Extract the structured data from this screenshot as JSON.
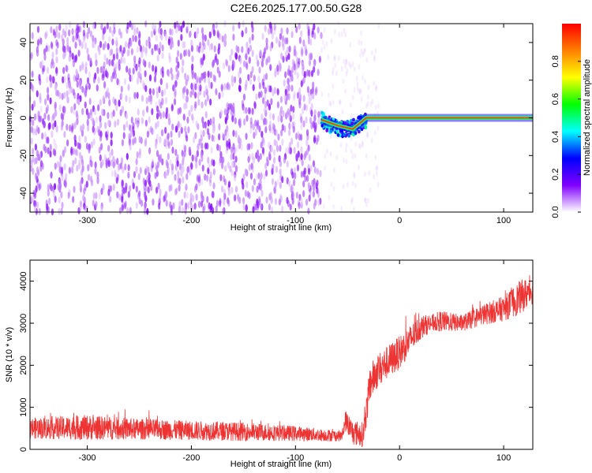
{
  "figure": {
    "title": "C2E6.2025.177.00.50.G28"
  },
  "chart_data": [
    {
      "type": "heatmap",
      "xlabel": "Height of straight line (km)",
      "ylabel": "Frequency (Hz)",
      "xlim": [
        -355,
        128
      ],
      "ylim": [
        -50,
        50
      ],
      "xticks": [
        "-300",
        "-200",
        "-100",
        "0",
        "100"
      ],
      "yticks": [
        "-40",
        "-20",
        "0",
        "20",
        "40"
      ],
      "xtick_values": [
        -300,
        -200,
        -100,
        0,
        100
      ],
      "ytick_values": [
        -40,
        -20,
        0,
        20,
        40
      ],
      "colorbar": {
        "label": "Normalized spectral amplitude",
        "range": [
          0,
          1
        ],
        "ticks": [
          "0.0",
          "0.2",
          "0.4",
          "0.6",
          "0.8"
        ],
        "tick_values": [
          0,
          0.2,
          0.4,
          0.6,
          0.8
        ],
        "colormap": [
          "#ffffff",
          "#8000ff",
          "#0000ff",
          "#00ffff",
          "#00ff00",
          "#ffff00",
          "#ff8000",
          "#ff0000"
        ]
      },
      "regions": [
        {
          "x_range": [
            -355,
            -75
          ],
          "y_range": [
            -50,
            50
          ],
          "amplitude": 0.05,
          "description_level": "noise"
        },
        {
          "x_range": [
            -75,
            -32
          ],
          "y_range": [
            -10,
            5
          ],
          "amplitude": 0.35,
          "description_level": "scattered signal"
        },
        {
          "x_range": [
            -32,
            128
          ],
          "y_range": [
            -1,
            1
          ],
          "amplitude": 0.9,
          "description_level": "tone"
        }
      ],
      "tone_line": {
        "x": [
          -75,
          -60,
          -45,
          -32,
          0,
          128
        ],
        "frequency": [
          -1,
          -4,
          -6,
          0,
          0,
          0
        ]
      }
    },
    {
      "type": "line",
      "xlabel": "Height of straight line (km)",
      "ylabel": "SNR (10 * v/v)",
      "xlim": [
        -355,
        128
      ],
      "ylim": [
        0,
        4500
      ],
      "xticks": [
        "-300",
        "-200",
        "-100",
        "0",
        "100"
      ],
      "yticks": [
        "0",
        "1000",
        "2000",
        "3000",
        "4000"
      ],
      "xtick_values": [
        -300,
        -200,
        -100,
        0,
        100
      ],
      "ytick_values": [
        0,
        1000,
        2000,
        3000,
        4000
      ],
      "series": [
        {
          "color": "#ee3333",
          "x": [
            -355,
            -300,
            -250,
            -200,
            -150,
            -100,
            -75,
            -55,
            -52,
            -45,
            -35,
            -28,
            -20,
            -10,
            0,
            10,
            20,
            30,
            40,
            60,
            80,
            100,
            115,
            128
          ],
          "mean": [
            500,
            520,
            480,
            450,
            420,
            380,
            340,
            320,
            700,
            400,
            350,
            1600,
            1900,
            2100,
            2300,
            2600,
            2900,
            3000,
            3050,
            3000,
            3200,
            3350,
            3600,
            3800
          ],
          "spread": [
            250,
            300,
            250,
            230,
            220,
            180,
            150,
            130,
            250,
            300,
            300,
            450,
            400,
            400,
            400,
            350,
            300,
            200,
            250,
            200,
            250,
            300,
            400,
            350
          ]
        }
      ]
    }
  ]
}
